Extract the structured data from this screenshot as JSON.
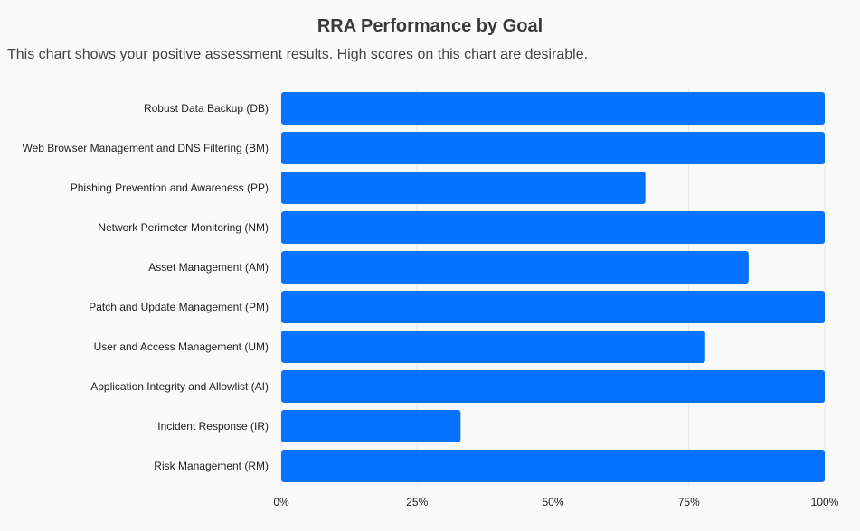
{
  "chart_data": {
    "type": "bar",
    "orientation": "horizontal",
    "title": "RRA Performance by Goal",
    "subtitle": "This chart shows your positive assessment results. High scores on this chart are desirable.",
    "categories": [
      "Robust Data Backup (DB)",
      "Web Browser Management and DNS Filtering (BM)",
      "Phishing Prevention and Awareness (PP)",
      "Network Perimeter Monitoring (NM)",
      "Asset Management (AM)",
      "Patch and Update Management (PM)",
      "User and Access Management (UM)",
      "Application Integrity and Allowlist (AI)",
      "Incident Response (IR)",
      "Risk Management (RM)"
    ],
    "values": [
      100,
      100,
      67,
      100,
      86,
      100,
      78,
      100,
      33,
      100
    ],
    "xlim": [
      0,
      100
    ],
    "x_ticks": [
      "0%",
      "25%",
      "50%",
      "75%",
      "100%"
    ],
    "x_tick_values": [
      0,
      25,
      50,
      75,
      100
    ],
    "grid": true,
    "bar_color": "#0573ff"
  }
}
